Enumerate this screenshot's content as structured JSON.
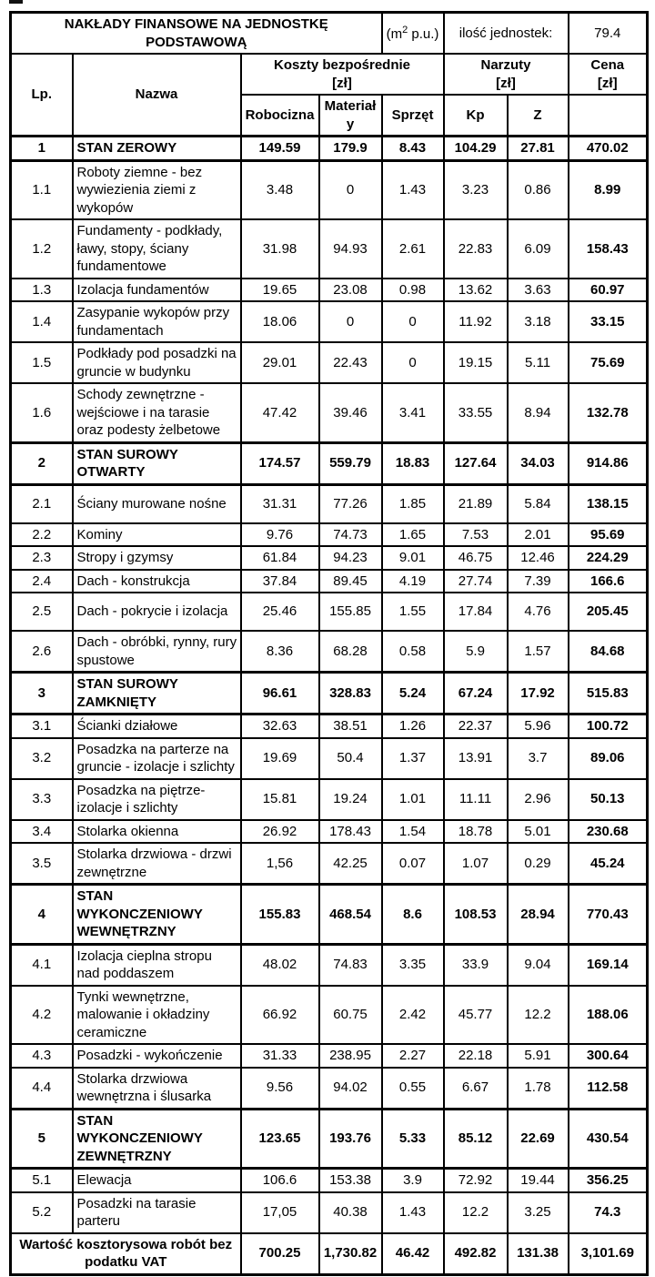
{
  "header": {
    "title": "NAKŁADY FINANSOWE NA JEDNOSTKĘ PODSTAWOWĄ",
    "unit": {
      "pre": "(m",
      "sup": "2",
      "post": " p.u.)"
    },
    "units_label": "ilość jednostek:",
    "units_value": "79.4"
  },
  "columns": {
    "lp": "Lp.",
    "nazwa": "Nazwa",
    "koszty_group": "Koszty bezpośrednie",
    "koszty_unit": "[zł]",
    "narzuty_group": "Narzuty",
    "narzuty_unit": "[zł]",
    "cena": "Cena",
    "cena_unit": "[zł]",
    "sub": [
      "Robocizna",
      "Materiały",
      "Sprzęt",
      "Kp",
      "Z"
    ]
  },
  "table": {
    "rows": [
      {
        "lp": "1",
        "name": "STAN ZEROWY",
        "robocizna": "149.59",
        "materialy": "179.9",
        "sprzet": "8.43",
        "kp": "104.29",
        "z": "27.81",
        "cena": "470.02",
        "section": true
      },
      {
        "lp": "1.1",
        "name": "Roboty ziemne - bez wywiezienia ziemi z wykopów",
        "robocizna": "3.48",
        "materialy": "0",
        "sprzet": "1.43",
        "kp": "3.23",
        "z": "0.86",
        "cena": "8.99"
      },
      {
        "lp": "1.2",
        "name": "Fundamenty - podkłady, ławy, stopy, ściany fundamentowe",
        "robocizna": "31.98",
        "materialy": "94.93",
        "sprzet": "2.61",
        "kp": "22.83",
        "z": "6.09",
        "cena": "158.43"
      },
      {
        "lp": "1.3",
        "name": "Izolacja fundamentów",
        "robocizna": "19.65",
        "materialy": "23.08",
        "sprzet": "0.98",
        "kp": "13.62",
        "z": "3.63",
        "cena": "60.97"
      },
      {
        "lp": "1.4",
        "name": "Zasypanie wykopów przy fundamentach",
        "robocizna": "18.06",
        "materialy": "0",
        "sprzet": "0",
        "kp": "11.92",
        "z": "3.18",
        "cena": "33.15"
      },
      {
        "lp": "1.5",
        "name": "Podkłady pod posadzki na gruncie w budynku",
        "robocizna": "29.01",
        "materialy": "22.43",
        "sprzet": "0",
        "kp": "19.15",
        "z": "5.11",
        "cena": "75.69"
      },
      {
        "lp": "1.6",
        "name": "Schody zewnętrzne - wejściowe i na tarasie oraz podesty żelbetowe",
        "robocizna": "47.42",
        "materialy": "39.46",
        "sprzet": "3.41",
        "kp": "33.55",
        "z": "8.94",
        "cena": "132.78"
      },
      {
        "lp": "2",
        "name": "STAN SUROWY OTWARTY",
        "robocizna": "174.57",
        "materialy": "559.79",
        "sprzet": "18.83",
        "kp": "127.64",
        "z": "34.03",
        "cena": "914.86",
        "section": true
      },
      {
        "lp": "2.1",
        "name": "Ściany murowane nośne",
        "robocizna": "31.31",
        "materialy": "77.26",
        "sprzet": "1.85",
        "kp": "21.89",
        "z": "5.84",
        "cena": "138.15",
        "tall": true
      },
      {
        "lp": "2.2",
        "name": "Kominy",
        "robocizna": "9.76",
        "materialy": "74.73",
        "sprzet": "1.65",
        "kp": "7.53",
        "z": "2.01",
        "cena": "95.69"
      },
      {
        "lp": "2.3",
        "name": "Stropy i gzymsy",
        "robocizna": "61.84",
        "materialy": "94.23",
        "sprzet": "9.01",
        "kp": "46.75",
        "z": "12.46",
        "cena": "224.29"
      },
      {
        "lp": "2.4",
        "name": "Dach - konstrukcja",
        "robocizna": "37.84",
        "materialy": "89.45",
        "sprzet": "4.19",
        "kp": "27.74",
        "z": "7.39",
        "cena": "166.6"
      },
      {
        "lp": "2.5",
        "name": "Dach - pokrycie i izolacja",
        "robocizna": "25.46",
        "materialy": "155.85",
        "sprzet": "1.55",
        "kp": "17.84",
        "z": "4.76",
        "cena": "205.45",
        "tall": true
      },
      {
        "lp": "2.6",
        "name": "Dach - obróbki, rynny, rury spustowe",
        "robocizna": "8.36",
        "materialy": "68.28",
        "sprzet": "0.58",
        "kp": "5.9",
        "z": "1.57",
        "cena": "84.68"
      },
      {
        "lp": "3",
        "name": "STAN SUROWY ZAMKNIĘTY",
        "robocizna": "96.61",
        "materialy": "328.83",
        "sprzet": "5.24",
        "kp": "67.24",
        "z": "17.92",
        "cena": "515.83",
        "section": true
      },
      {
        "lp": "3.1",
        "name": "Ścianki działowe",
        "robocizna": "32.63",
        "materialy": "38.51",
        "sprzet": "1.26",
        "kp": "22.37",
        "z": "5.96",
        "cena": "100.72"
      },
      {
        "lp": "3.2",
        "name": "Posadzka na parterze na gruncie - izolacje i szlichty",
        "robocizna": "19.69",
        "materialy": "50.4",
        "sprzet": "1.37",
        "kp": "13.91",
        "z": "3.7",
        "cena": "89.06"
      },
      {
        "lp": "3.3",
        "name": "Posadzka na piętrze- izolacje i szlichty",
        "robocizna": "15.81",
        "materialy": "19.24",
        "sprzet": "1.01",
        "kp": "11.11",
        "z": "2.96",
        "cena": "50.13"
      },
      {
        "lp": "3.4",
        "name": "Stolarka okienna",
        "robocizna": "26.92",
        "materialy": "178.43",
        "sprzet": "1.54",
        "kp": "18.78",
        "z": "5.01",
        "cena": "230.68"
      },
      {
        "lp": "3.5",
        "name": "Stolarka drzwiowa - drzwi zewnętrzne",
        "robocizna": "1,56",
        "materialy": "42.25",
        "sprzet": "0.07",
        "kp": "1.07",
        "z": "0.29",
        "cena": "45.24"
      },
      {
        "lp": "4",
        "name": "STAN WYKONCZENIOWY WEWNĘTRZNY",
        "robocizna": "155.83",
        "materialy": "468.54",
        "sprzet": "8.6",
        "kp": "108.53",
        "z": "28.94",
        "cena": "770.43",
        "section": true
      },
      {
        "lp": "4.1",
        "name": "Izolacja cieplna stropu nad poddaszem",
        "robocizna": "48.02",
        "materialy": "74.83",
        "sprzet": "3.35",
        "kp": "33.9",
        "z": "9.04",
        "cena": "169.14"
      },
      {
        "lp": "4.2",
        "name": "Tynki wewnętrzne, malowanie i okładziny ceramiczne",
        "robocizna": "66.92",
        "materialy": "60.75",
        "sprzet": "2.42",
        "kp": "45.77",
        "z": "12.2",
        "cena": "188.06"
      },
      {
        "lp": "4.3",
        "name": "Posadzki - wykończenie",
        "robocizna": "31.33",
        "materialy": "238.95",
        "sprzet": "2.27",
        "kp": "22.18",
        "z": "5.91",
        "cena": "300.64"
      },
      {
        "lp": "4.4",
        "name": "Stolarka drzwiowa wewnętrzna i ślusarka",
        "robocizna": "9.56",
        "materialy": "94.02",
        "sprzet": "0.55",
        "kp": "6.67",
        "z": "1.78",
        "cena": "112.58"
      },
      {
        "lp": "5",
        "name": "STAN WYKONCZENIOWY ZEWNĘTRZNY",
        "robocizna": "123.65",
        "materialy": "193.76",
        "sprzet": "5.33",
        "kp": "85.12",
        "z": "22.69",
        "cena": "430.54",
        "section": true
      },
      {
        "lp": "5.1",
        "name": "Elewacja",
        "robocizna": "106.6",
        "materialy": "153.38",
        "sprzet": "3.9",
        "kp": "72.92",
        "z": "19.44",
        "cena": "356.25"
      },
      {
        "lp": "5.2",
        "name": "Posadzki na tarasie parteru",
        "robocizna": "17,05",
        "materialy": "40.38",
        "sprzet": "1.43",
        "kp": "12.2",
        "z": "3.25",
        "cena": "74.3"
      }
    ]
  },
  "footer": {
    "label": "Wartość kosztorysowa robót bez podatku VAT",
    "robocizna": "700.25",
    "materialy": "1,730.82",
    "sprzet": "46.42",
    "kp": "492.82",
    "z": "131.38",
    "cena": "3,101.69"
  }
}
